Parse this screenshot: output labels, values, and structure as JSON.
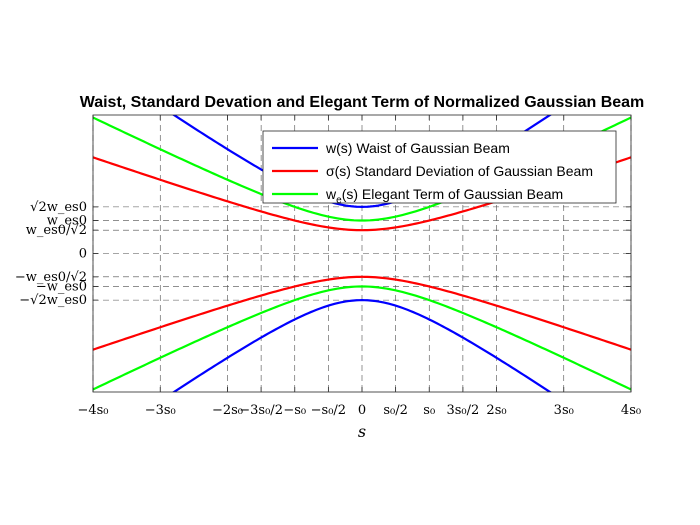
{
  "chart_data": {
    "type": "line",
    "title": "Waist, Standard Devation and Elegant Term of Normalized Gaussian Beam",
    "xlabel": "s",
    "ylabel": "",
    "xlim": [
      -4,
      4
    ],
    "ylim": [
      -2.1,
      2.1
    ],
    "grid": true,
    "legend_position": "top-right",
    "x_tick_values": [
      -4,
      -3,
      -2,
      -1.5,
      -1,
      -0.5,
      0,
      0.5,
      1,
      1.5,
      2,
      3,
      4
    ],
    "x_tick_labels": [
      "−4s₀",
      "−3s₀",
      "−2s₀",
      "−3s₀/2",
      "−s₀",
      "−s₀/2",
      "0",
      "s₀/2",
      "s₀",
      "3s₀/2",
      "2s₀",
      "3s₀",
      "4s₀"
    ],
    "y_tick_values": [
      -0.7071,
      -0.5,
      -0.3536,
      0,
      0.3536,
      0.5,
      0.7071
    ],
    "y_tick_labels": [
      "−√2w_es0",
      "−w_es0",
      "−w_es0/√2",
      "0",
      "w_es0/√2",
      "w_es0",
      "√2w_es0"
    ],
    "series": [
      {
        "name": "w(s) Waist of Gaussian Beam",
        "label_main": "w(s) Waist of Gaussian Beam",
        "color": "#0000ff",
        "factor": 0.7071,
        "symmetric": true
      },
      {
        "name": "σ(s) Standard Deviation of Gaussian Beam",
        "label_main": "σ(s) Standard Deviation of Gaussian Beam",
        "color": "#ff0000",
        "factor": 0.3536,
        "symmetric": true
      },
      {
        "name": "w_e(s) Elegant Term of Gaussian Beam",
        "label_main": "w",
        "label_sub": "e",
        "label_rest": "(s) Elegant Term of Gaussian Beam",
        "color": "#00ff00",
        "factor": 0.5,
        "symmetric": true
      }
    ],
    "x": [
      -4,
      -3.5,
      -3,
      -2.5,
      -2,
      -1.5,
      -1,
      -0.5,
      0,
      0.5,
      1,
      1.5,
      2,
      2.5,
      3,
      3.5,
      4
    ],
    "curve_formula": "y = ±factor·sqrt(1 + s²)"
  }
}
